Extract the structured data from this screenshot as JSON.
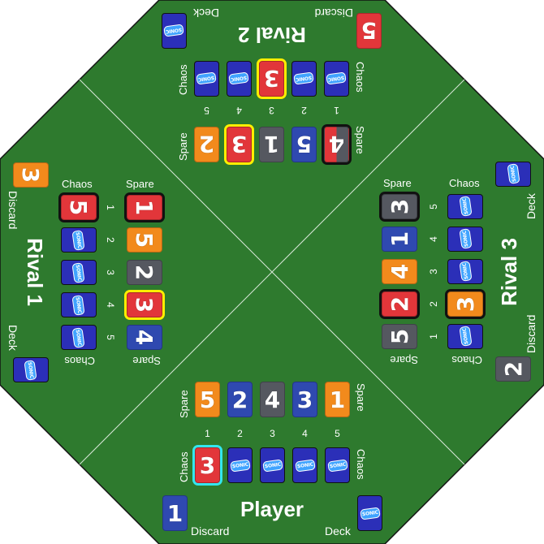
{
  "colors": {
    "board": "#2e7a2e",
    "orange": "#f28a1c",
    "blue": "#2f49b0",
    "gray": "#555860",
    "red": "#e2363a",
    "highlight_yellow": "#ffee00",
    "highlight_black": "#111111",
    "highlight_cyan": "#33e6ee",
    "card_back": "#2b2fb8"
  },
  "labels": {
    "spare": "Spare",
    "chaos": "Chaos",
    "discard": "Discard",
    "deck": "Deck"
  },
  "slot_numbers": [
    "1",
    "2",
    "3",
    "4",
    "5"
  ],
  "card_back_text": "SONIC",
  "player": {
    "name": "Player",
    "spare": [
      {
        "v": "5",
        "c": "orange"
      },
      {
        "v": "2",
        "c": "blue"
      },
      {
        "v": "4",
        "c": "gray"
      },
      {
        "v": "3",
        "c": "blue"
      },
      {
        "v": "1",
        "c": "orange"
      }
    ],
    "chaos": [
      {
        "v": "3",
        "c": "red",
        "hl": "cyan"
      },
      {
        "back": true
      },
      {
        "back": true
      },
      {
        "back": true
      },
      {
        "back": true
      }
    ],
    "discard": {
      "v": "1",
      "c": "blue"
    }
  },
  "rival2": {
    "name": "Rival 2",
    "spare": [
      {
        "v": "4",
        "c": "red",
        "hl": "black",
        "split": "gray"
      },
      {
        "v": "5",
        "c": "blue"
      },
      {
        "v": "1",
        "c": "gray"
      },
      {
        "v": "3",
        "c": "red",
        "hl": "yellow"
      },
      {
        "v": "2",
        "c": "orange"
      }
    ],
    "chaos": [
      {
        "back": true
      },
      {
        "back": true
      },
      {
        "v": "3",
        "c": "red",
        "hl": "yellow"
      },
      {
        "back": true
      },
      {
        "back": true
      }
    ],
    "discard": {
      "v": "5",
      "c": "red"
    }
  },
  "rival1": {
    "name": "Rival 1",
    "spare": [
      {
        "v": "1",
        "c": "red",
        "hl": "black"
      },
      {
        "v": "5",
        "c": "orange"
      },
      {
        "v": "2",
        "c": "gray"
      },
      {
        "v": "3",
        "c": "red",
        "hl": "yellow"
      },
      {
        "v": "4",
        "c": "blue"
      }
    ],
    "chaos": [
      {
        "v": "5",
        "c": "red",
        "hl": "black"
      },
      {
        "back": true
      },
      {
        "back": true
      },
      {
        "back": true
      },
      {
        "back": true
      }
    ],
    "discard": {
      "v": "3",
      "c": "orange"
    }
  },
  "rival3": {
    "name": "Rival 3",
    "spare": [
      {
        "v": "5",
        "c": "gray"
      },
      {
        "v": "2",
        "c": "red",
        "hl": "black"
      },
      {
        "v": "4",
        "c": "orange"
      },
      {
        "v": "1",
        "c": "blue"
      },
      {
        "v": "3",
        "c": "gray",
        "hl": "black"
      }
    ],
    "chaos": [
      {
        "back": true
      },
      {
        "v": "3",
        "c": "orange",
        "hl": "black"
      },
      {
        "back": true
      },
      {
        "back": true
      },
      {
        "back": true
      }
    ],
    "discard": {
      "v": "2",
      "c": "gray"
    }
  }
}
